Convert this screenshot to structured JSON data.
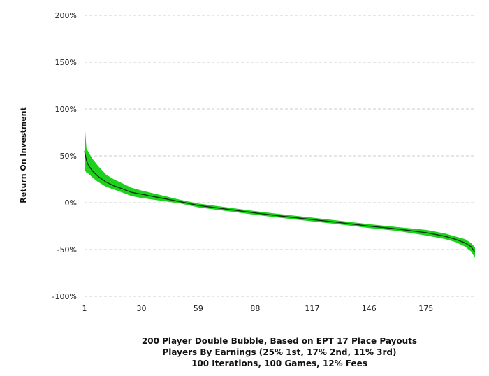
{
  "chart_data": {
    "type": "area",
    "title_lines": [
      "200 Player Double Bubble, Based on EPT 17 Place Payouts",
      "Players By Earnings (25% 1st, 17% 2nd, 11% 3rd)",
      "100 Iterations, 100 Games, 12% Fees"
    ],
    "xlabel": "",
    "ylabel": "Return On Investment",
    "xlim": [
      1,
      200
    ],
    "ylim": [
      -100,
      200
    ],
    "x_ticks": [
      1,
      30,
      59,
      88,
      117,
      146,
      175
    ],
    "y_ticks": [
      200,
      150,
      100,
      50,
      0,
      -50,
      -100
    ],
    "y_tick_labels": [
      "200%",
      "150%",
      "100%",
      "50%",
      "0%",
      "-50%",
      "-100%"
    ],
    "grid": "horizontal-dashed",
    "colors": {
      "band": "#1fd11f",
      "line": "#0a2a0a",
      "grid": "#cccccc"
    },
    "series": [
      {
        "x": [
          1,
          2,
          3,
          5,
          8,
          12,
          16,
          20,
          25,
          30,
          40,
          50,
          59,
          70,
          88,
          100,
          117,
          130,
          146,
          160,
          175,
          185,
          190,
          195,
          198,
          200
        ],
        "values": [
          55,
          45,
          40,
          34,
          28,
          22,
          18,
          15,
          11,
          9,
          5,
          1,
          -3,
          -6,
          -11,
          -14,
          -18,
          -21,
          -25,
          -28,
          -32,
          -36,
          -39,
          -43,
          -47,
          -53
        ],
        "upper": [
          86,
          58,
          54,
          47,
          39,
          30,
          25,
          21,
          16,
          13,
          8,
          3,
          -1,
          -4,
          -9,
          -12,
          -16,
          -19,
          -23,
          -26,
          -29,
          -33,
          -36,
          -39,
          -43,
          -48
        ],
        "lower": [
          35,
          32,
          31,
          27,
          22,
          17,
          14,
          11,
          7,
          5,
          2,
          -1,
          -5,
          -8,
          -13,
          -16,
          -20,
          -23,
          -27,
          -30,
          -35,
          -39,
          -42,
          -47,
          -52,
          -59
        ]
      }
    ]
  }
}
